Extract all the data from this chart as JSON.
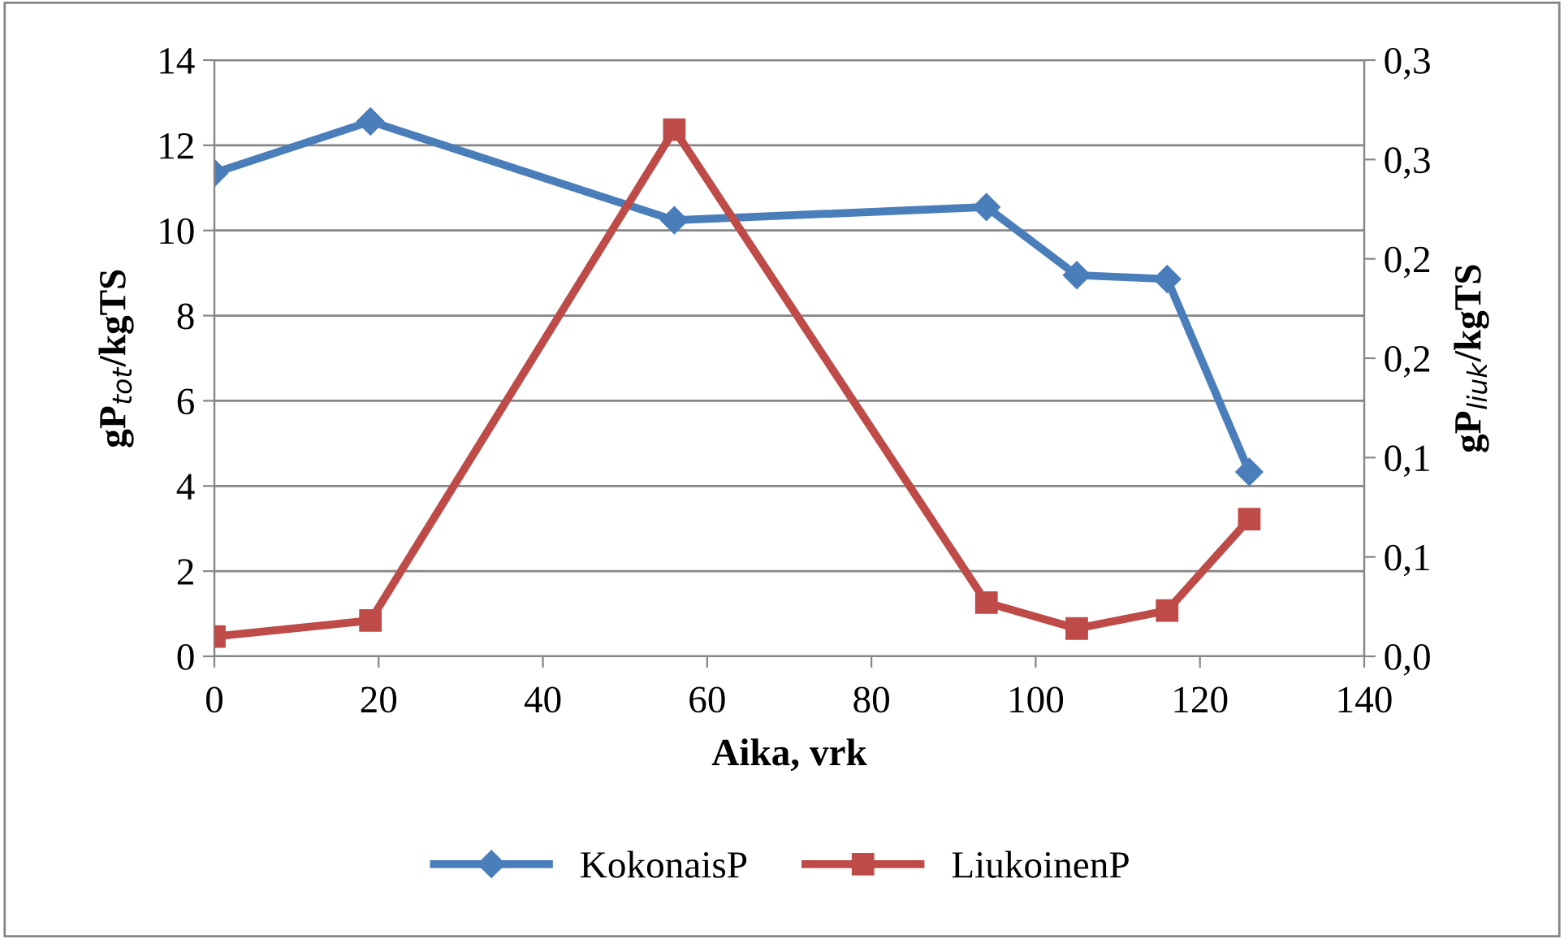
{
  "chart_data": {
    "type": "line",
    "xlabel": "Aika, vrk",
    "ylabel": "gP$_{tot}$/kgTS",
    "y2label": "gP$_{liuk}$/kgTS",
    "x": [
      0,
      19,
      56,
      94,
      105,
      116,
      126
    ],
    "series": [
      {
        "name": "KokonaisP",
        "color": "#4a7ebb",
        "marker": "diamond",
        "values": [
          11.35,
          12.56,
          10.24,
          10.55,
          8.95,
          8.86,
          4.33
        ]
      },
      {
        "name": "LiukoinenP",
        "color": "#be4b48",
        "marker": "square",
        "axis": "y2",
        "values": [
          0.01,
          0.018,
          0.265,
          0.027,
          0.014,
          0.023,
          0.069
        ]
      }
    ],
    "xlim": [
      0,
      140
    ],
    "xticks": [
      0,
      20,
      40,
      60,
      80,
      100,
      120,
      140
    ],
    "ylim": [
      0,
      14
    ],
    "yticks": [
      0,
      2,
      4,
      6,
      8,
      10,
      12,
      14
    ],
    "y2lim": [
      0,
      0.3
    ],
    "y2ticks": [
      {
        "value": 0,
        "label": "0,0"
      },
      {
        "value": 0.05,
        "label": "0,1"
      },
      {
        "value": 0.1,
        "label": "0,1"
      },
      {
        "value": 0.15,
        "label": "0,2"
      },
      {
        "value": 0.2,
        "label": "0,2"
      },
      {
        "value": 0.25,
        "label": "0,3"
      },
      {
        "value": 0.3,
        "label": "0,3"
      }
    ],
    "grid": "y",
    "legend": "bottom",
    "line_style": "solid"
  }
}
